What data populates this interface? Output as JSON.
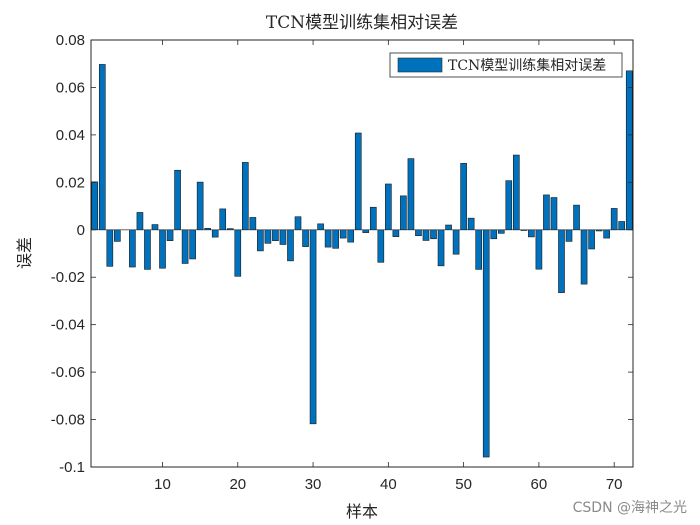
{
  "watermark": "CSDN @海神之光",
  "chart_data": {
    "type": "bar",
    "title": "TCN模型训练集相对误差",
    "xlabel": "样本",
    "ylabel": "误差",
    "xlim": [
      0.5,
      72.5
    ],
    "ylim": [
      -0.1,
      0.08
    ],
    "xticks": [
      10,
      20,
      30,
      40,
      50,
      60,
      70
    ],
    "yticks": [
      -0.1,
      -0.08,
      -0.06,
      -0.04,
      -0.02,
      0,
      0.02,
      0.04,
      0.06,
      0.08
    ],
    "ytick_labels": [
      "-0.1",
      "-0.08",
      "-0.06",
      "-0.04",
      "-0.02",
      "0",
      "0.02",
      "0.04",
      "0.06",
      "0.08"
    ],
    "grid": false,
    "legend_position": "top-right",
    "bar_color": "#0072BD",
    "series": [
      {
        "name": "TCN模型训练集相对误差",
        "x": [
          1,
          2,
          3,
          4,
          5,
          6,
          7,
          8,
          9,
          10,
          11,
          12,
          13,
          14,
          15,
          16,
          17,
          18,
          19,
          20,
          21,
          22,
          23,
          24,
          25,
          26,
          27,
          28,
          29,
          30,
          31,
          32,
          33,
          34,
          35,
          36,
          37,
          38,
          39,
          40,
          41,
          42,
          43,
          44,
          45,
          46,
          47,
          48,
          49,
          50,
          51,
          52,
          53,
          54,
          55,
          56,
          57,
          58,
          59,
          60,
          61,
          62,
          63,
          64,
          65,
          66,
          67,
          68,
          69,
          70,
          71,
          72
        ],
        "values": [
          0.0202,
          0.0697,
          -0.0154,
          -0.0049,
          0.0,
          -0.0157,
          0.0073,
          -0.0167,
          0.0022,
          -0.0162,
          -0.0046,
          0.0251,
          -0.0142,
          -0.0123,
          0.0201,
          0.0006,
          -0.0031,
          0.0088,
          0.0005,
          -0.0196,
          0.0284,
          0.0052,
          -0.0089,
          -0.0057,
          -0.0046,
          -0.0062,
          -0.0131,
          0.0055,
          -0.0071,
          -0.0818,
          0.0025,
          -0.0073,
          -0.0078,
          -0.0035,
          -0.0052,
          0.0408,
          -0.0012,
          0.0095,
          -0.0137,
          0.0193,
          -0.0029,
          0.0143,
          0.03,
          -0.0025,
          -0.0045,
          -0.0038,
          -0.0152,
          0.002,
          -0.0103,
          0.028,
          0.0049,
          -0.0167,
          -0.0958,
          -0.0038,
          -0.0015,
          0.0207,
          0.0315,
          -0.0003,
          -0.003,
          -0.0166,
          0.0147,
          0.0136,
          -0.0265,
          -0.0049,
          0.0104,
          -0.0229,
          -0.0081,
          -0.0005,
          -0.0035,
          0.009,
          0.0035,
          0.067
        ]
      }
    ]
  }
}
